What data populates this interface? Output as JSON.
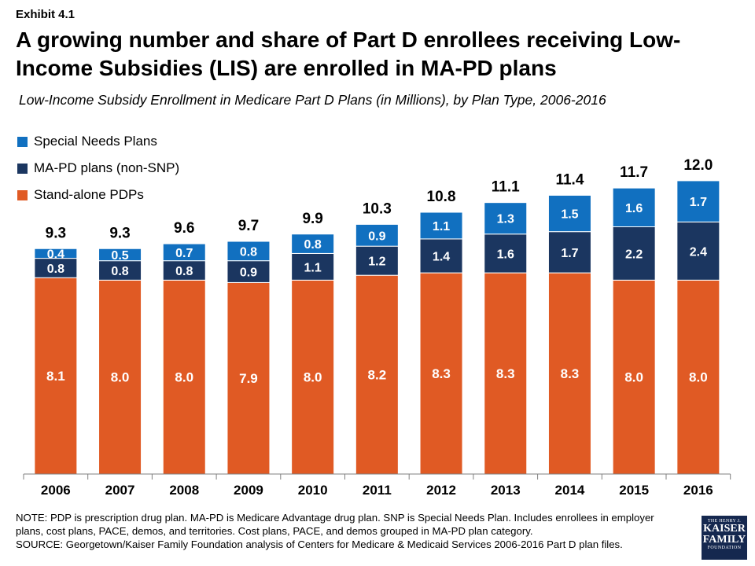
{
  "exhibit_label": "Exhibit 4.1",
  "title": "A growing number and share of Part D enrollees receiving Low-Income Subsidies (LIS) are enrolled in MA-PD plans",
  "subtitle": "Low-Income Subsidy Enrollment in Medicare Part D Plans (in Millions), by Plan Type, 2006-2016",
  "legend": [
    {
      "label": "Special Needs Plans",
      "color": "#1170c0"
    },
    {
      "label": "MA-PD plans (non-SNP)",
      "color": "#1b3660"
    },
    {
      "label": "Stand-alone PDPs",
      "color": "#e05a24"
    }
  ],
  "chart_data": {
    "type": "bar",
    "stacked": true,
    "categories": [
      "2006",
      "2007",
      "2008",
      "2009",
      "2010",
      "2011",
      "2012",
      "2013",
      "2014",
      "2015",
      "2016"
    ],
    "series": [
      {
        "name": "Stand-alone PDPs",
        "color": "#e05a24",
        "values": [
          8.1,
          8.0,
          8.0,
          7.9,
          8.0,
          8.2,
          8.3,
          8.3,
          8.3,
          8.0,
          8.0
        ],
        "labels": [
          "8.1",
          "8.0",
          "8.0",
          "7.9",
          "8.0",
          "8.2",
          "8.3",
          "8.3",
          "8.3",
          "8.0",
          "8.0"
        ]
      },
      {
        "name": "MA-PD plans (non-SNP)",
        "color": "#1b3660",
        "values": [
          0.8,
          0.8,
          0.8,
          0.9,
          1.1,
          1.2,
          1.4,
          1.6,
          1.7,
          2.2,
          2.4
        ],
        "labels": [
          "0.8",
          "0.8",
          "0.8",
          "0.9",
          "1.1",
          "1.2",
          "1.4",
          "1.6",
          "1.7",
          "2.2",
          "2.4"
        ]
      },
      {
        "name": "Special Needs Plans",
        "color": "#1170c0",
        "values": [
          0.4,
          0.5,
          0.7,
          0.8,
          0.8,
          0.9,
          1.1,
          1.3,
          1.5,
          1.6,
          1.7
        ],
        "labels": [
          "0.4",
          "0.5",
          "0.7",
          "0.8",
          "0.8",
          "0.9",
          "1.1",
          "1.3",
          "1.5",
          "1.6",
          "1.7"
        ]
      }
    ],
    "totals": [
      "9.3",
      "9.3",
      "9.6",
      "9.7",
      "9.9",
      "10.3",
      "10.8",
      "11.1",
      "11.4",
      "11.7",
      "12.0"
    ],
    "total_values": [
      9.3,
      9.3,
      9.6,
      9.7,
      9.9,
      10.3,
      10.8,
      11.1,
      11.4,
      11.7,
      12.0
    ],
    "ylim": [
      0,
      12.3
    ],
    "xlabel": "",
    "ylabel": ""
  },
  "note": "NOTE: PDP is prescription drug plan. MA-PD is Medicare Advantage drug plan. SNP is Special Needs Plan. Includes enrollees in employer plans, cost plans, PACE, demos, and territories. Cost plans, PACE, and demos grouped in MA-PD plan category.",
  "source": "SOURCE: Georgetown/Kaiser Family Foundation analysis of Centers for Medicare & Medicaid Services 2006-2016 Part D plan files.",
  "logo": {
    "line1": "THE HENRY J.",
    "line2": "KAISER",
    "line3": "FAMILY",
    "line4": "FOUNDATION"
  }
}
